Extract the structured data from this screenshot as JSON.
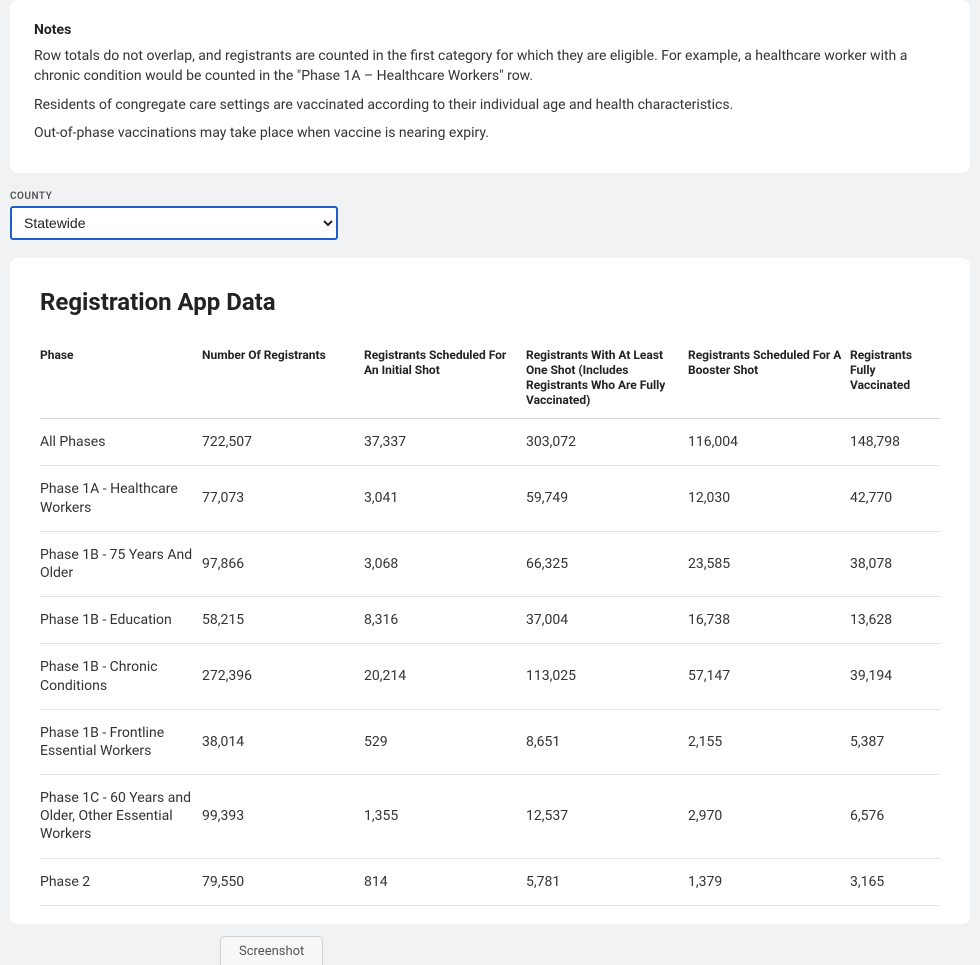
{
  "notes": {
    "title": "Notes",
    "p1": "Row totals do not overlap, and registrants are counted in the first category for which they are eligible. For example, a healthcare worker with a chronic condition would be counted in the \"Phase 1A – Healthcare Workers\" row.",
    "p2": "Residents of congregate care settings are vaccinated according to their individual age and health characteristics.",
    "p3": "Out-of-phase vaccinations may take place when vaccine is nearing expiry."
  },
  "county": {
    "label": "COUNTY",
    "selected": "Statewide"
  },
  "registration": {
    "title": "Registration App Data",
    "columns": {
      "phase": "Phase",
      "number": "Number Of Registrants",
      "initial": "Registrants Scheduled For An Initial Shot",
      "oneshot": "Registrants With At Least One Shot (Includes Registrants Who Are Fully Vaccinated)",
      "booster": "Registrants Scheduled For A Booster Shot",
      "fully": "Registrants Fully Vaccinated"
    },
    "rows": [
      {
        "phase": "All Phases",
        "number": "722,507",
        "initial": "37,337",
        "oneshot": "303,072",
        "booster": "116,004",
        "fully": "148,798"
      },
      {
        "phase": "Phase 1A - Healthcare Workers",
        "number": "77,073",
        "initial": "3,041",
        "oneshot": "59,749",
        "booster": "12,030",
        "fully": "42,770"
      },
      {
        "phase": "Phase 1B - 75 Years And Older",
        "number": "97,866",
        "initial": "3,068",
        "oneshot": "66,325",
        "booster": "23,585",
        "fully": "38,078"
      },
      {
        "phase": "Phase 1B - Education",
        "number": "58,215",
        "initial": "8,316",
        "oneshot": "37,004",
        "booster": "16,738",
        "fully": "13,628"
      },
      {
        "phase": "Phase 1B - Chronic Conditions",
        "number": "272,396",
        "initial": "20,214",
        "oneshot": "113,025",
        "booster": "57,147",
        "fully": "39,194"
      },
      {
        "phase": "Phase 1B - Frontline Essential Workers",
        "number": "38,014",
        "initial": "529",
        "oneshot": "8,651",
        "booster": "2,155",
        "fully": "5,387"
      },
      {
        "phase": "Phase 1C - 60 Years and Older, Other Essential Workers",
        "number": "99,393",
        "initial": "1,355",
        "oneshot": "12,537",
        "booster": "2,970",
        "fully": "6,576"
      },
      {
        "phase": "Phase 2",
        "number": "79,550",
        "initial": "814",
        "oneshot": "5,781",
        "booster": "1,379",
        "fully": "3,165"
      }
    ]
  },
  "footer": {
    "screenshot": "Screenshot"
  },
  "styling": {
    "background_color": "#f1f2f3",
    "card_bg": "#ffffff",
    "select_border": "#1a5fcc",
    "row_border": "#e4e4e4",
    "header_border": "#d6d6d6",
    "text_color": "#333",
    "title_fontsize": 24,
    "body_fontsize": 14,
    "th_fontsize": 12
  }
}
